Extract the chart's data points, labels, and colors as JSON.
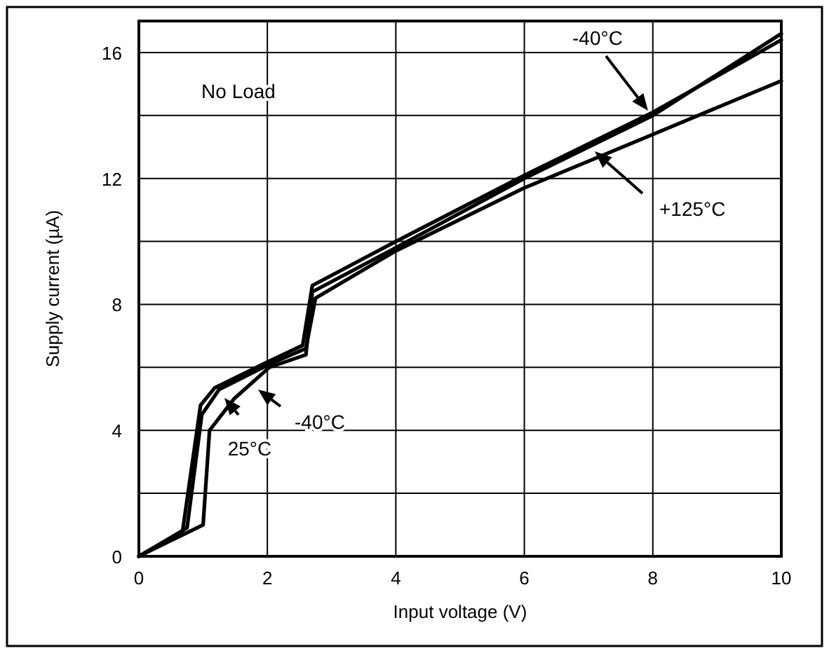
{
  "chart_data": {
    "type": "line",
    "xlabel": "Input voltage (V)",
    "ylabel": "Supply current (µA)",
    "xlim": [
      0,
      10
    ],
    "ylim": [
      0,
      17
    ],
    "xticks": [
      0,
      2,
      4,
      6,
      8,
      10
    ],
    "yticks": [
      0,
      {
        "value": 2,
        "label": null
      },
      4,
      {
        "value": 6,
        "label": null
      },
      8,
      {
        "value": 10,
        "label": null
      },
      12,
      {
        "value": 14,
        "label": null
      },
      16
    ],
    "grid": true,
    "line_style": "solid",
    "marker": "none",
    "series": [
      {
        "color": "#000000",
        "x": [
          0,
          0.5,
          1.0,
          1.1,
          1.48,
          2.03,
          2.6,
          2.7,
          4,
          6,
          8,
          10
        ],
        "values": [
          0,
          0.5,
          1.0,
          4.0,
          5.0,
          6.0,
          6.4,
          8.4,
          9.8,
          12,
          14,
          16.6
        ]
      },
      {
        "color": "#000000",
        "x": [
          0,
          0.68,
          0.96,
          1.18,
          2.03,
          2.55,
          2.7,
          4,
          6,
          8,
          10
        ],
        "values": [
          0,
          0.8,
          4.8,
          5.35,
          6.2,
          6.7,
          8.6,
          10,
          12.1,
          14.1,
          16.4
        ]
      },
      {
        "color": "#000000",
        "x": [
          0,
          0.75,
          0.98,
          1.25,
          2.03,
          2.6,
          2.75,
          4,
          6,
          8,
          10
        ],
        "values": [
          0,
          0.9,
          4.5,
          5.3,
          6.1,
          6.6,
          8.2,
          9.7,
          11.7,
          13.4,
          15.1
        ]
      }
    ],
    "annotations": [
      "-40°C",
      "+125°C",
      "25°C",
      "-40°C",
      "No Load"
    ]
  }
}
